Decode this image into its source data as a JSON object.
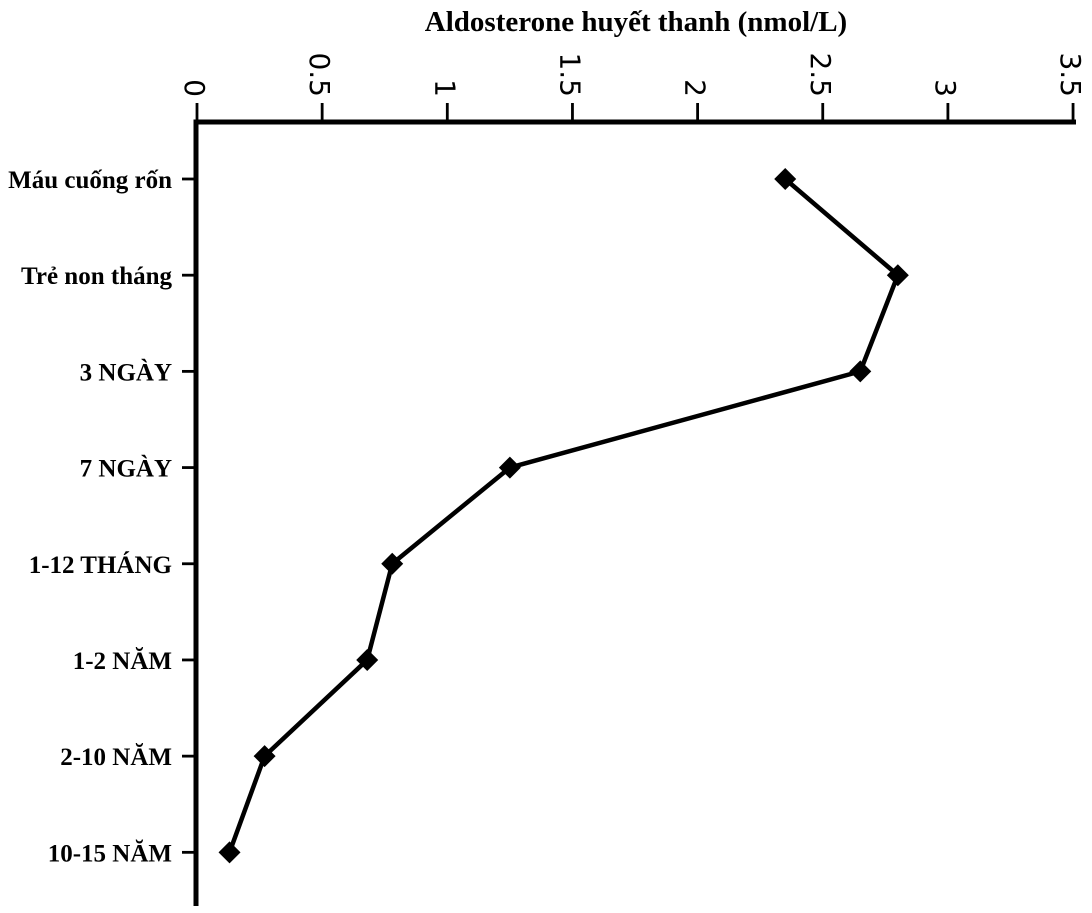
{
  "page": {
    "background_color": "#ffffff"
  },
  "chart_data": {
    "type": "line",
    "orientation": "horizontal_categories",
    "title": "Aldosterone huyết thanh (nmol/L)",
    "xlabel": "Aldosterone huyết thanh (nmol/L)",
    "ylabel": "",
    "categories": [
      "Máu cuống rốn",
      "Trẻ non tháng",
      "3 NGÀY",
      "7 NGÀY",
      "1-12 THÁNG",
      "1-2 NĂM",
      "2-10 NĂM",
      "10-15 NĂM"
    ],
    "values": [
      2.35,
      2.8,
      2.65,
      1.25,
      0.78,
      0.68,
      0.27,
      0.13
    ],
    "x_axis": {
      "position": "top",
      "range": [
        0,
        3.5
      ],
      "ticks": [
        0,
        0.5,
        1,
        1.5,
        2,
        2.5,
        3,
        3.5
      ],
      "tick_labels": [
        "0",
        "0.5",
        "1",
        "1.5",
        "2",
        "2.5",
        "3",
        "3.5"
      ],
      "tick_label_rotation_deg": 90
    },
    "marker": "diamond",
    "grid": false,
    "legend": false,
    "colors": {
      "line": "#000000",
      "marker": "#000000",
      "axis": "#000000",
      "text": "#000000"
    }
  }
}
